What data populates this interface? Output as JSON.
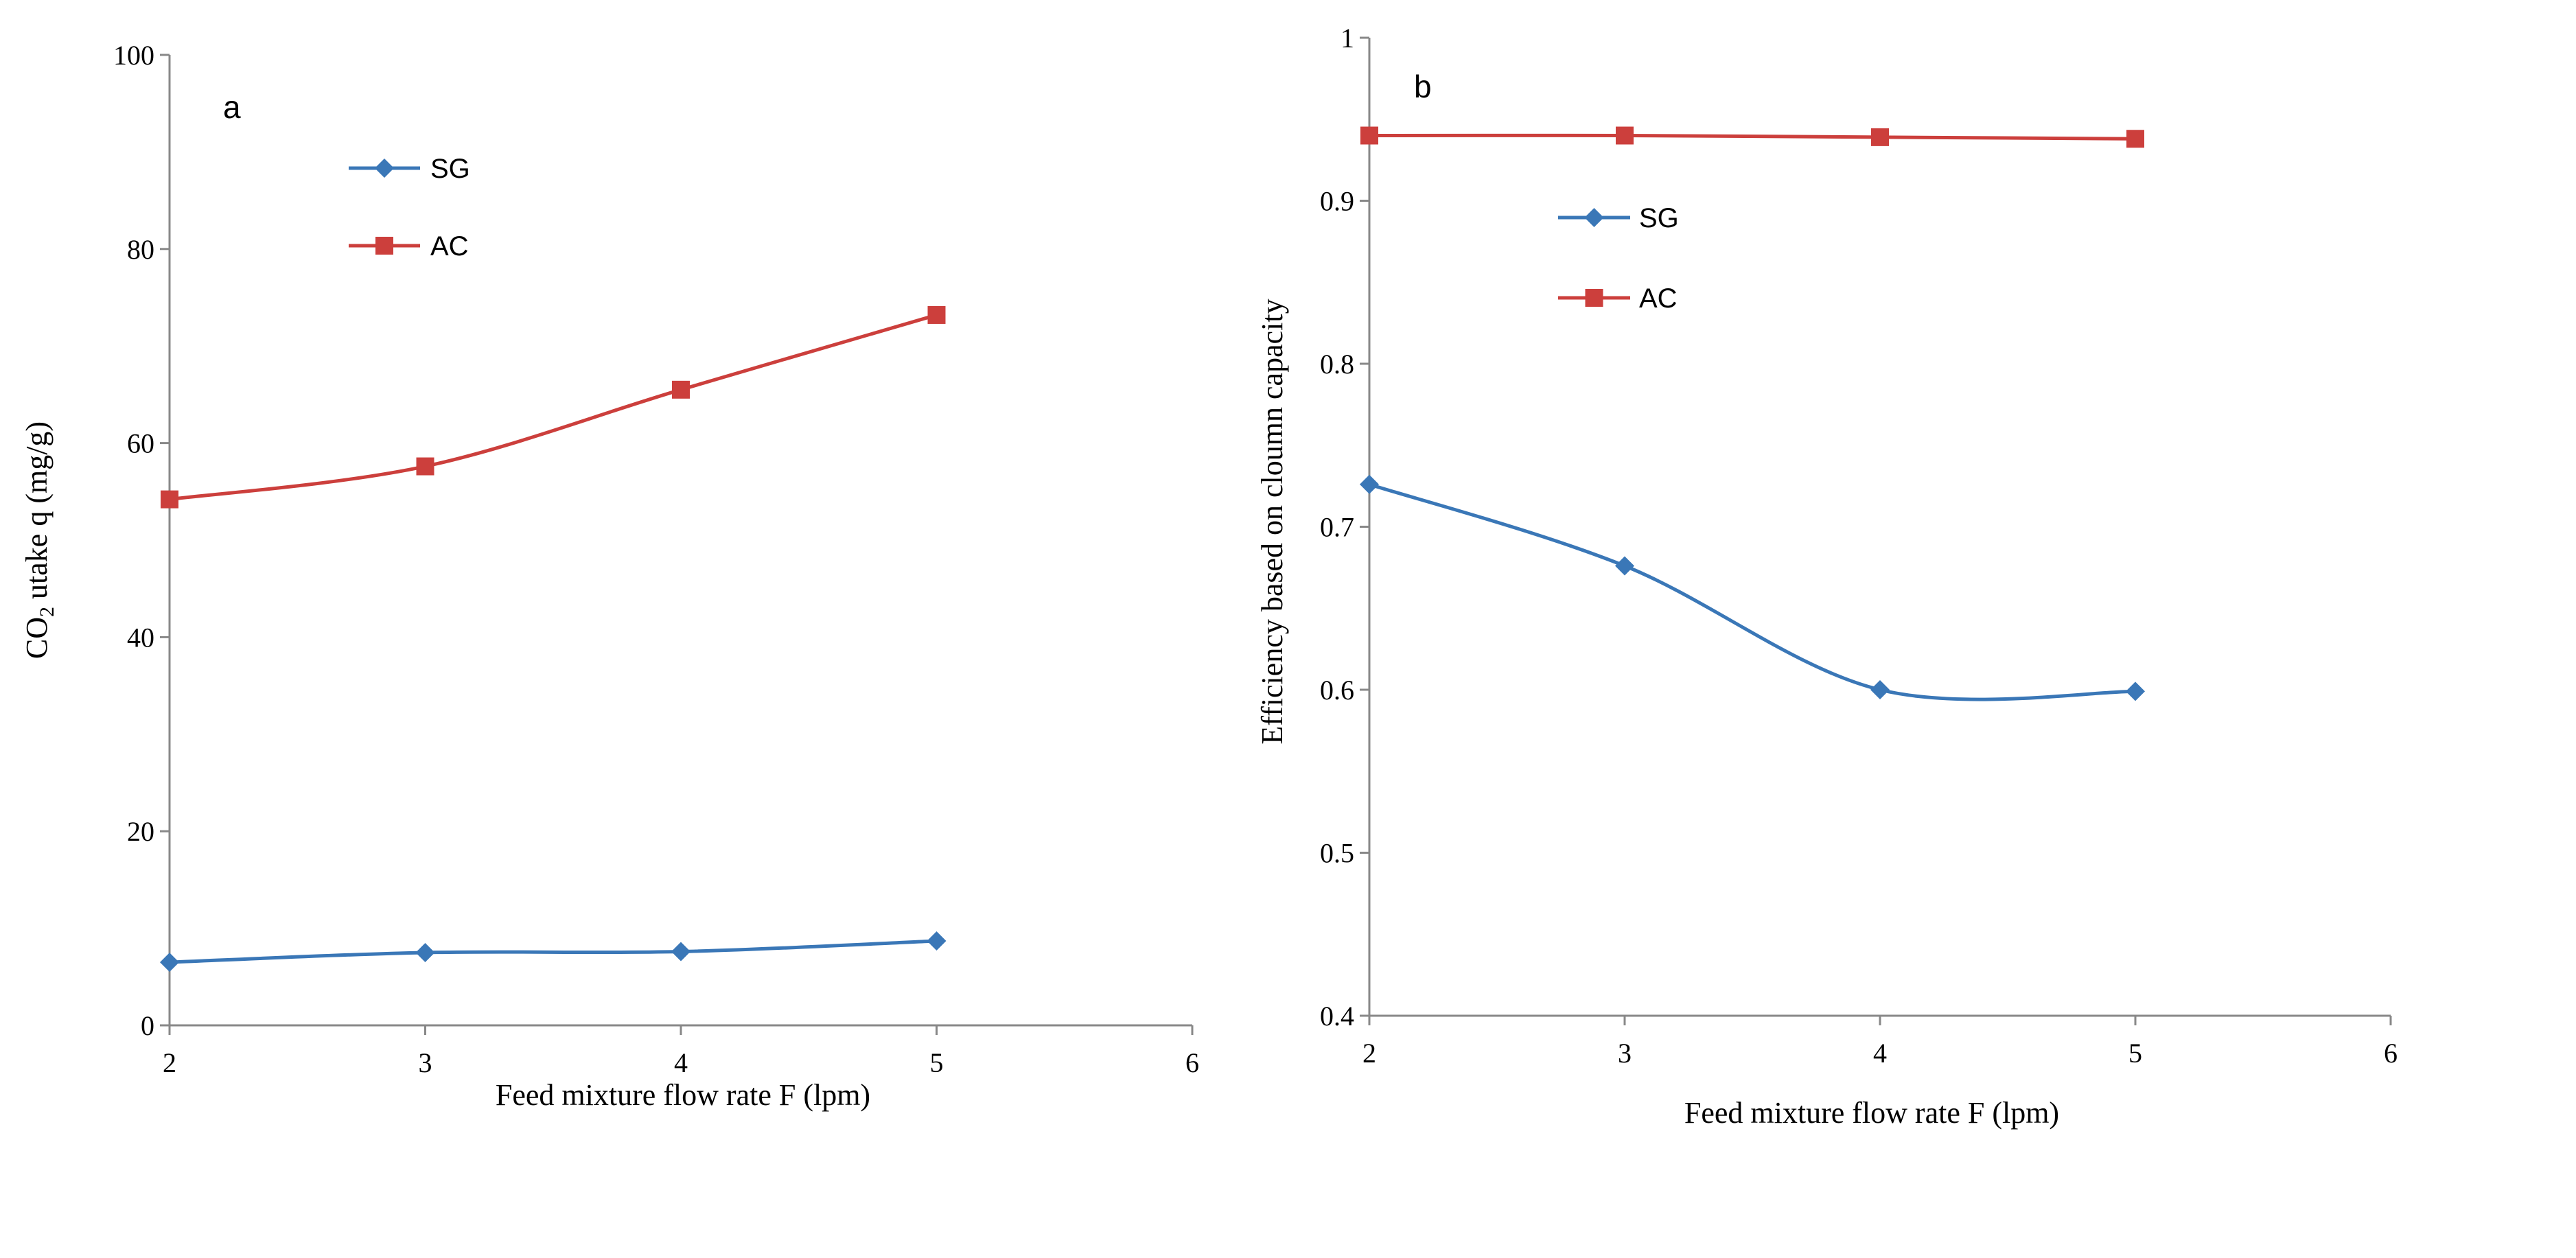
{
  "chart_data": [
    {
      "type": "line",
      "panel_label": "a",
      "title": "",
      "xlabel": "Feed mixture flow rate F (lpm)",
      "ylabel": {
        "prefix": "CO",
        "subscript": "2",
        "suffix": " utake q (mg/g)"
      },
      "xlim": [
        2,
        6
      ],
      "ylim": [
        0,
        100
      ],
      "xticks": [
        2,
        3,
        4,
        5,
        6
      ],
      "yticks": [
        0,
        20,
        40,
        60,
        80,
        100
      ],
      "grid": false,
      "legend_position": "upper-left",
      "series": [
        {
          "name": "SG",
          "color": "#3a77b7",
          "marker": "diamond",
          "x": [
            2,
            3,
            4,
            5
          ],
          "y": [
            6.5,
            7.5,
            7.6,
            8.7
          ]
        },
        {
          "name": "AC",
          "color": "#cc3f3c",
          "marker": "square",
          "x": [
            2,
            3,
            4,
            5
          ],
          "y": [
            54.2,
            57.6,
            65.5,
            73.2
          ]
        }
      ]
    },
    {
      "type": "line",
      "panel_label": "b",
      "title": "",
      "xlabel": "Feed mixture flow rate F (lpm)",
      "ylabel": "Efficiency based on cloumn  capacity",
      "xlim": [
        2,
        6
      ],
      "ylim": [
        0.4,
        1
      ],
      "xticks": [
        2,
        3,
        4,
        5,
        6
      ],
      "yticks": [
        0.4,
        0.5,
        0.6,
        0.7,
        0.8,
        0.9,
        1
      ],
      "grid": false,
      "legend_position": "upper-left",
      "series": [
        {
          "name": "SG",
          "color": "#3a77b7",
          "marker": "diamond",
          "x": [
            2,
            3,
            4,
            5
          ],
          "y": [
            0.726,
            0.676,
            0.6,
            0.599
          ]
        },
        {
          "name": "AC",
          "color": "#cc3f3c",
          "marker": "square",
          "x": [
            2,
            3,
            4,
            5
          ],
          "y": [
            0.94,
            0.94,
            0.939,
            0.938
          ]
        }
      ]
    }
  ]
}
